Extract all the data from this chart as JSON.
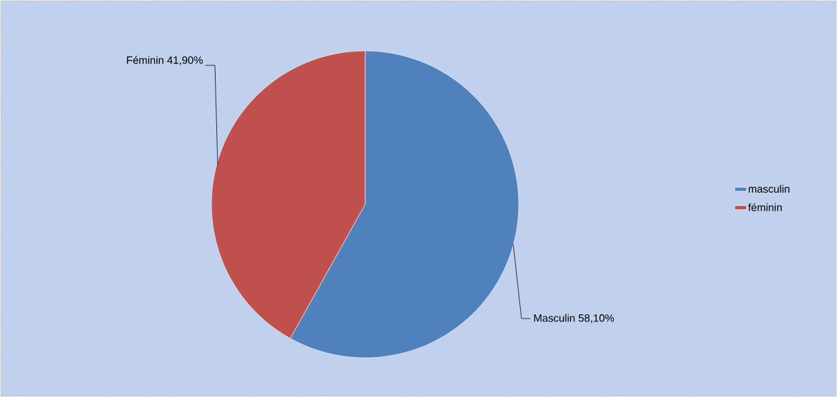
{
  "chart_data": {
    "type": "pie",
    "categories": [
      "masculin",
      "féminin"
    ],
    "values": [
      58.1,
      41.9
    ],
    "colors": [
      "#4f81bd",
      "#c0504d"
    ],
    "value_labels": [
      "Masculin  58,10%",
      "Féminin 41,90%"
    ],
    "legend": "right"
  }
}
